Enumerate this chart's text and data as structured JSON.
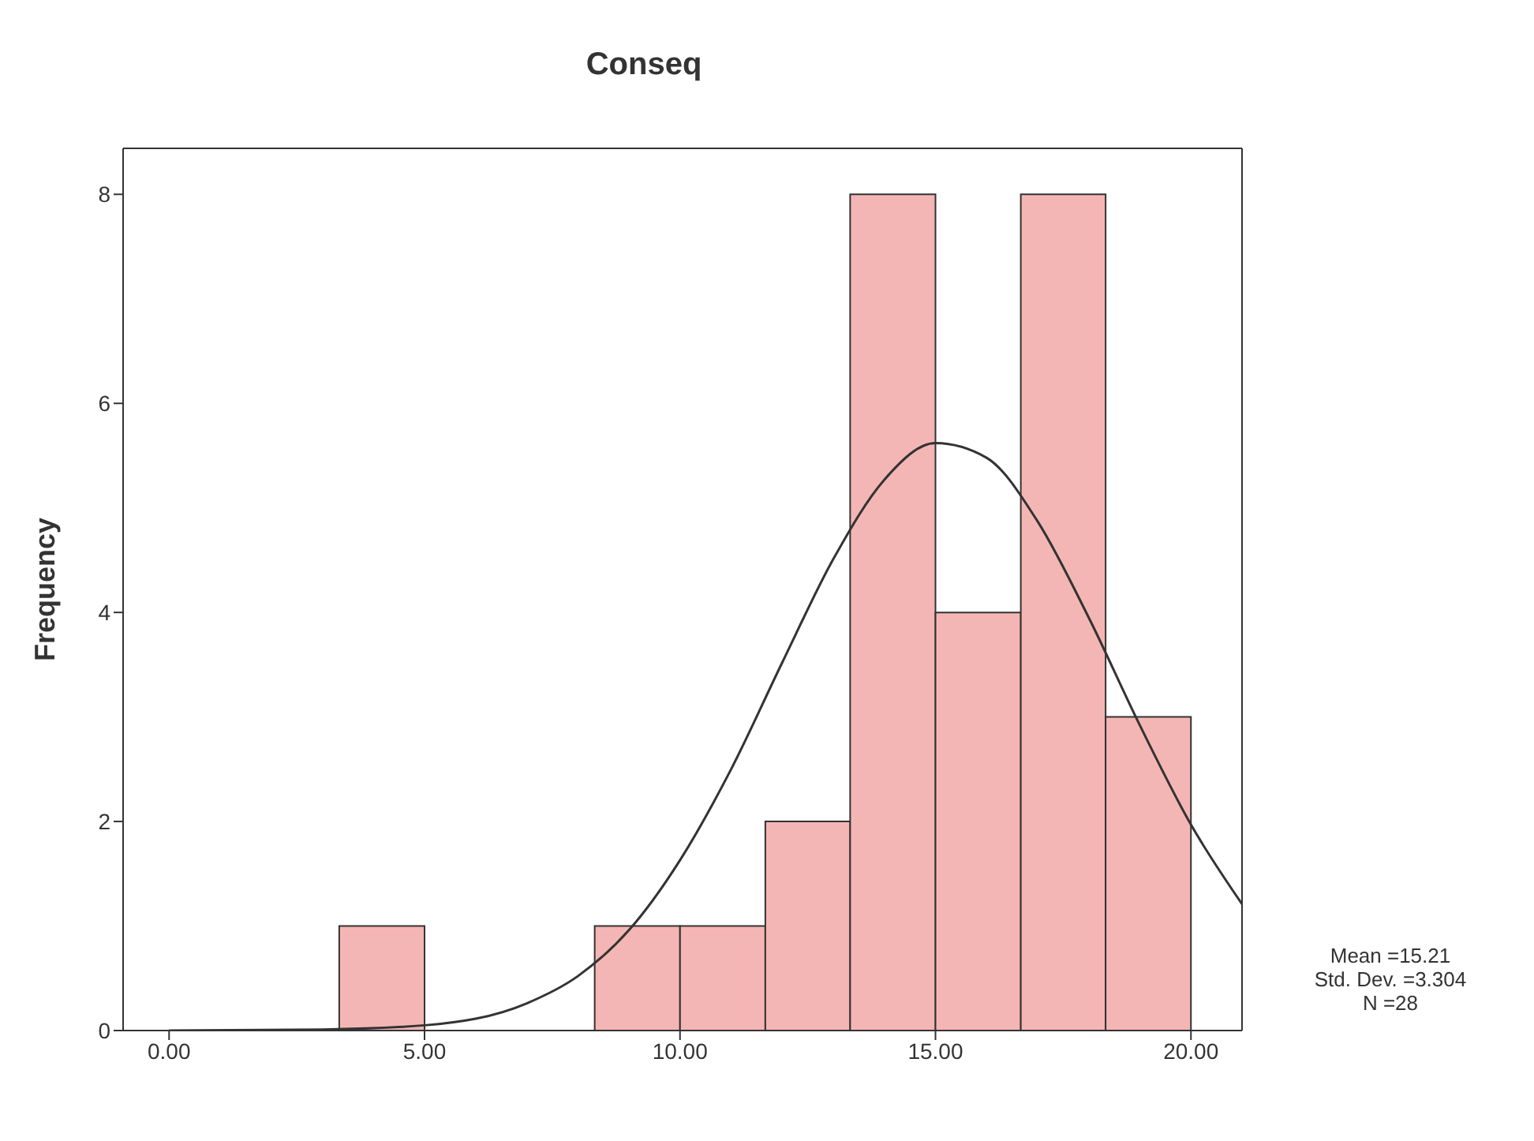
{
  "chart_data": {
    "type": "histogram",
    "title": "Conseq",
    "ylabel": "Frequency",
    "bins": [
      3.33,
      5,
      8.33,
      10,
      11.67,
      13.33,
      15,
      16.67,
      18.33,
      20
    ],
    "values": [
      1,
      0,
      1,
      1,
      2,
      8,
      4,
      8,
      3
    ],
    "color": "#f4b6b4",
    "series": [
      {
        "type": "line",
        "color": "#333333",
        "x": [
          0,
          3,
          5,
          7,
          8,
          9,
          10,
          11,
          12,
          13,
          14,
          15,
          16,
          17,
          18,
          19,
          20,
          21
        ],
        "values": [
          0,
          0.01,
          0.05,
          0.26,
          0.52,
          0.96,
          1.63,
          2.5,
          3.52,
          4.51,
          5.27,
          5.62,
          5.48,
          4.87,
          3.95,
          2.92,
          1.97,
          1.21
        ]
      }
    ],
    "xlim": [
      -0.9,
      21
    ],
    "xticks": [
      {
        "value": 0,
        "label": "0.00"
      },
      {
        "value": 5,
        "label": "5.00"
      },
      {
        "value": 10,
        "label": "10.00"
      },
      {
        "value": 15,
        "label": "15.00"
      },
      {
        "value": 20,
        "label": "20.00"
      }
    ],
    "ylim": [
      0,
      8.44
    ],
    "yticks": [
      0,
      2,
      4,
      6,
      8
    ],
    "annotations": [
      "Mean =15.21",
      "Std. Dev. =3.304",
      "N =28"
    ]
  }
}
